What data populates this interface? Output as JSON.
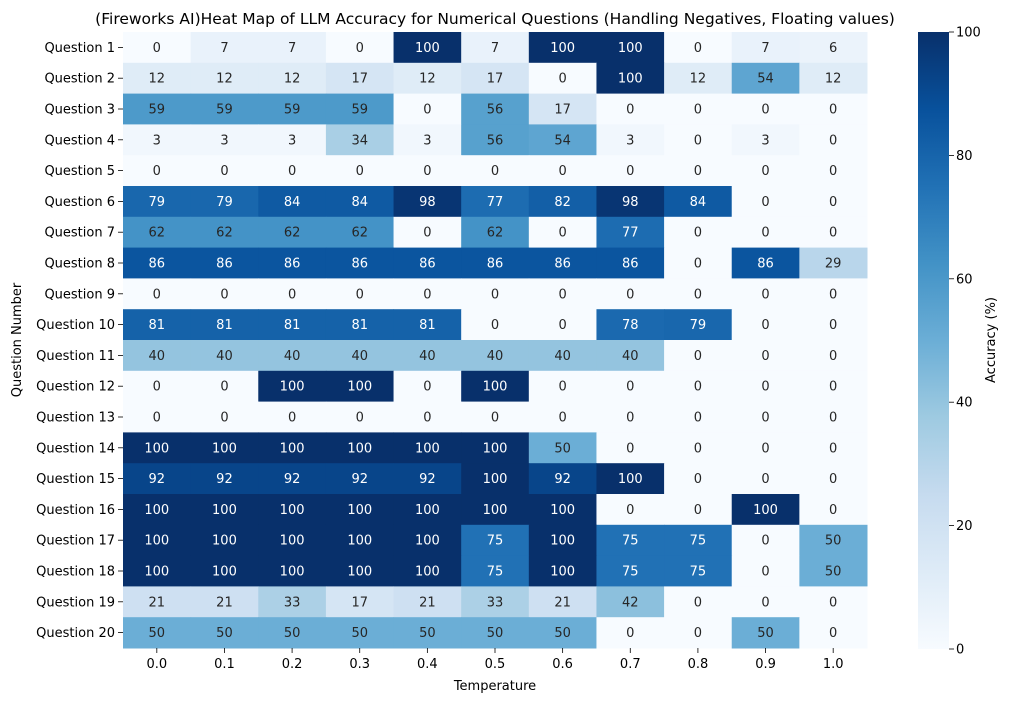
{
  "chart_data": {
    "type": "heatmap",
    "title": "(Fireworks AI)Heat Map of LLM Accuracy for Numerical Questions (Handling Negatives, Floating values)",
    "xlabel": "Temperature",
    "ylabel": "Question Number",
    "x_categories": [
      "0.0",
      "0.1",
      "0.2",
      "0.3",
      "0.4",
      "0.5",
      "0.6",
      "0.7",
      "0.8",
      "0.9",
      "1.0"
    ],
    "y_categories": [
      "Question 1",
      "Question 2",
      "Question 3",
      "Question 4",
      "Question 5",
      "Question 6",
      "Question 7",
      "Question 8",
      "Question 9",
      "Question 10",
      "Question 11",
      "Question 12",
      "Question 13",
      "Question 14",
      "Question 15",
      "Question 16",
      "Question 17",
      "Question 18",
      "Question 19",
      "Question 20"
    ],
    "values": [
      [
        0,
        7,
        7,
        0,
        100,
        7,
        100,
        100,
        0,
        7,
        6
      ],
      [
        12,
        12,
        12,
        17,
        12,
        17,
        0,
        100,
        12,
        54,
        12
      ],
      [
        59,
        59,
        59,
        59,
        0,
        56,
        17,
        0,
        0,
        0,
        0
      ],
      [
        3,
        3,
        3,
        34,
        3,
        56,
        54,
        3,
        0,
        3,
        0
      ],
      [
        0,
        0,
        0,
        0,
        0,
        0,
        0,
        0,
        0,
        0,
        0
      ],
      [
        79,
        79,
        84,
        84,
        98,
        77,
        82,
        98,
        84,
        0,
        0
      ],
      [
        62,
        62,
        62,
        62,
        0,
        62,
        0,
        77,
        0,
        0,
        0
      ],
      [
        86,
        86,
        86,
        86,
        86,
        86,
        86,
        86,
        0,
        86,
        29
      ],
      [
        0,
        0,
        0,
        0,
        0,
        0,
        0,
        0,
        0,
        0,
        0
      ],
      [
        81,
        81,
        81,
        81,
        81,
        0,
        0,
        78,
        79,
        0,
        0
      ],
      [
        40,
        40,
        40,
        40,
        40,
        40,
        40,
        40,
        0,
        0,
        0
      ],
      [
        0,
        0,
        100,
        100,
        0,
        100,
        0,
        0,
        0,
        0,
        0
      ],
      [
        0,
        0,
        0,
        0,
        0,
        0,
        0,
        0,
        0,
        0,
        0
      ],
      [
        100,
        100,
        100,
        100,
        100,
        100,
        50,
        0,
        0,
        0,
        0
      ],
      [
        92,
        92,
        92,
        92,
        92,
        100,
        92,
        100,
        0,
        0,
        0
      ],
      [
        100,
        100,
        100,
        100,
        100,
        100,
        100,
        0,
        0,
        100,
        0
      ],
      [
        100,
        100,
        100,
        100,
        100,
        75,
        100,
        75,
        75,
        0,
        50
      ],
      [
        100,
        100,
        100,
        100,
        100,
        75,
        100,
        75,
        75,
        0,
        50
      ],
      [
        21,
        21,
        33,
        17,
        21,
        33,
        21,
        42,
        0,
        0,
        0
      ],
      [
        50,
        50,
        50,
        50,
        50,
        50,
        50,
        0,
        0,
        50,
        0
      ]
    ],
    "colorbar": {
      "label": "Accuracy (%)",
      "range": [
        0,
        100
      ],
      "ticks": [
        "0",
        "20",
        "40",
        "60",
        "80",
        "100"
      ],
      "colormap": "Blues"
    },
    "grid": false
  }
}
